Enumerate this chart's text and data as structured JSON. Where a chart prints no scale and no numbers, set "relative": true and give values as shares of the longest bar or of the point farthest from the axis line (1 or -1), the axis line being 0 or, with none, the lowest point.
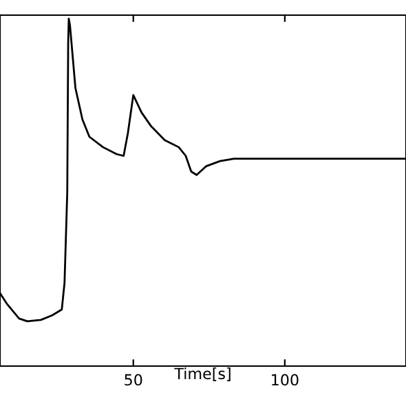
{
  "chart_data": {
    "type": "line",
    "relative": true,
    "xlabel": "Time[s]",
    "xlim": [
      6,
      140
    ],
    "xticks": [
      50,
      100
    ],
    "grid": false,
    "legend": false,
    "series": [
      {
        "color": "#000000",
        "x": [
          6,
          8.2,
          12.3,
          15,
          19.5,
          23.2,
          26.4,
          27.3,
          28.2,
          28.5,
          28.7,
          29.1,
          30.9,
          33.2,
          35.5,
          40,
          44.5,
          46.8,
          48.2,
          50,
          52.7,
          55.9,
          60.4,
          65,
          67.3,
          69.1,
          70.9,
          74,
          78.6,
          83.2,
          140
        ],
        "values": [
          0.21,
          0.18,
          0.137,
          0.129,
          0.133,
          0.146,
          0.163,
          0.24,
          0.5,
          0.927,
          1,
          0.98,
          0.8,
          0.71,
          0.66,
          0.63,
          0.61,
          0.605,
          0.67,
          0.78,
          0.73,
          0.69,
          0.65,
          0.63,
          0.605,
          0.56,
          0.55,
          0.575,
          0.59,
          0.597,
          0.597
        ]
      }
    ]
  }
}
